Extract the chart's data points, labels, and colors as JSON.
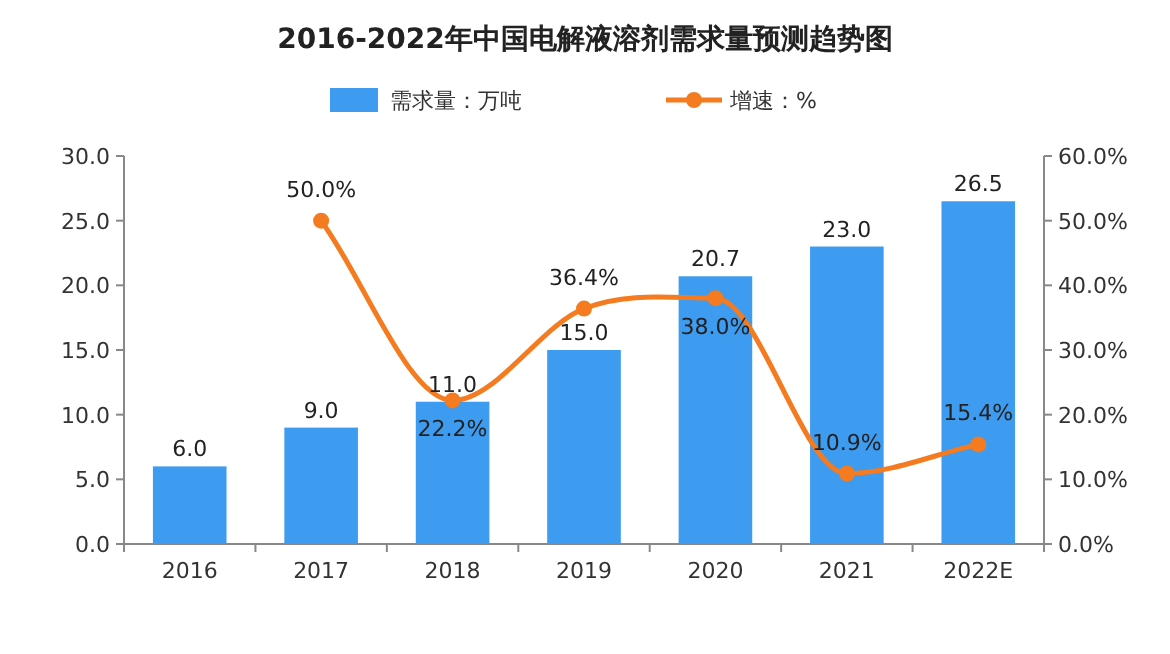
{
  "chart_data": {
    "type": "bar",
    "title": "2016-2022年中国电解液溶剂需求量预测趋势图",
    "categories": [
      "2016",
      "2017",
      "2018",
      "2019",
      "2020",
      "2021",
      "2022E"
    ],
    "series": [
      {
        "name": "需求量：万吨",
        "color": "#3d9bf0",
        "values": [
          6.0,
          9.0,
          11.0,
          15.0,
          20.7,
          23.0,
          26.5
        ],
        "value_labels": [
          "6.0",
          "9.0",
          "11.0",
          "15.0",
          "20.7",
          "23.0",
          "26.5"
        ]
      },
      {
        "name": "增速：%",
        "type": "line",
        "axis": "y2",
        "color": "#f47b20",
        "values": [
          null,
          50.0,
          22.2,
          36.4,
          38.0,
          10.9,
          15.4
        ],
        "value_labels": [
          null,
          "50.0%",
          "22.2%",
          "36.4%",
          "38.0%",
          "10.9%",
          "15.4%"
        ]
      }
    ],
    "ylim": [
      0,
      30
    ],
    "yticks": [
      {
        "value": 0,
        "label": "0.0"
      },
      {
        "value": 5,
        "label": "5.0"
      },
      {
        "value": 10,
        "label": "10.0"
      },
      {
        "value": 15,
        "label": "15.0"
      },
      {
        "value": 20,
        "label": "20.0"
      },
      {
        "value": 25,
        "label": "25.0"
      },
      {
        "value": 30,
        "label": "30.0"
      }
    ],
    "y2lim": [
      0,
      60
    ],
    "y2ticks": [
      {
        "value": 0,
        "label": "0.0%"
      },
      {
        "value": 10,
        "label": "10.0%"
      },
      {
        "value": 20,
        "label": "20.0%"
      },
      {
        "value": 30,
        "label": "30.0%"
      },
      {
        "value": 40,
        "label": "40.0%"
      },
      {
        "value": 50,
        "label": "50.0%"
      },
      {
        "value": 60,
        "label": "60.0%"
      }
    ],
    "legend": "top",
    "marker": "circle"
  }
}
